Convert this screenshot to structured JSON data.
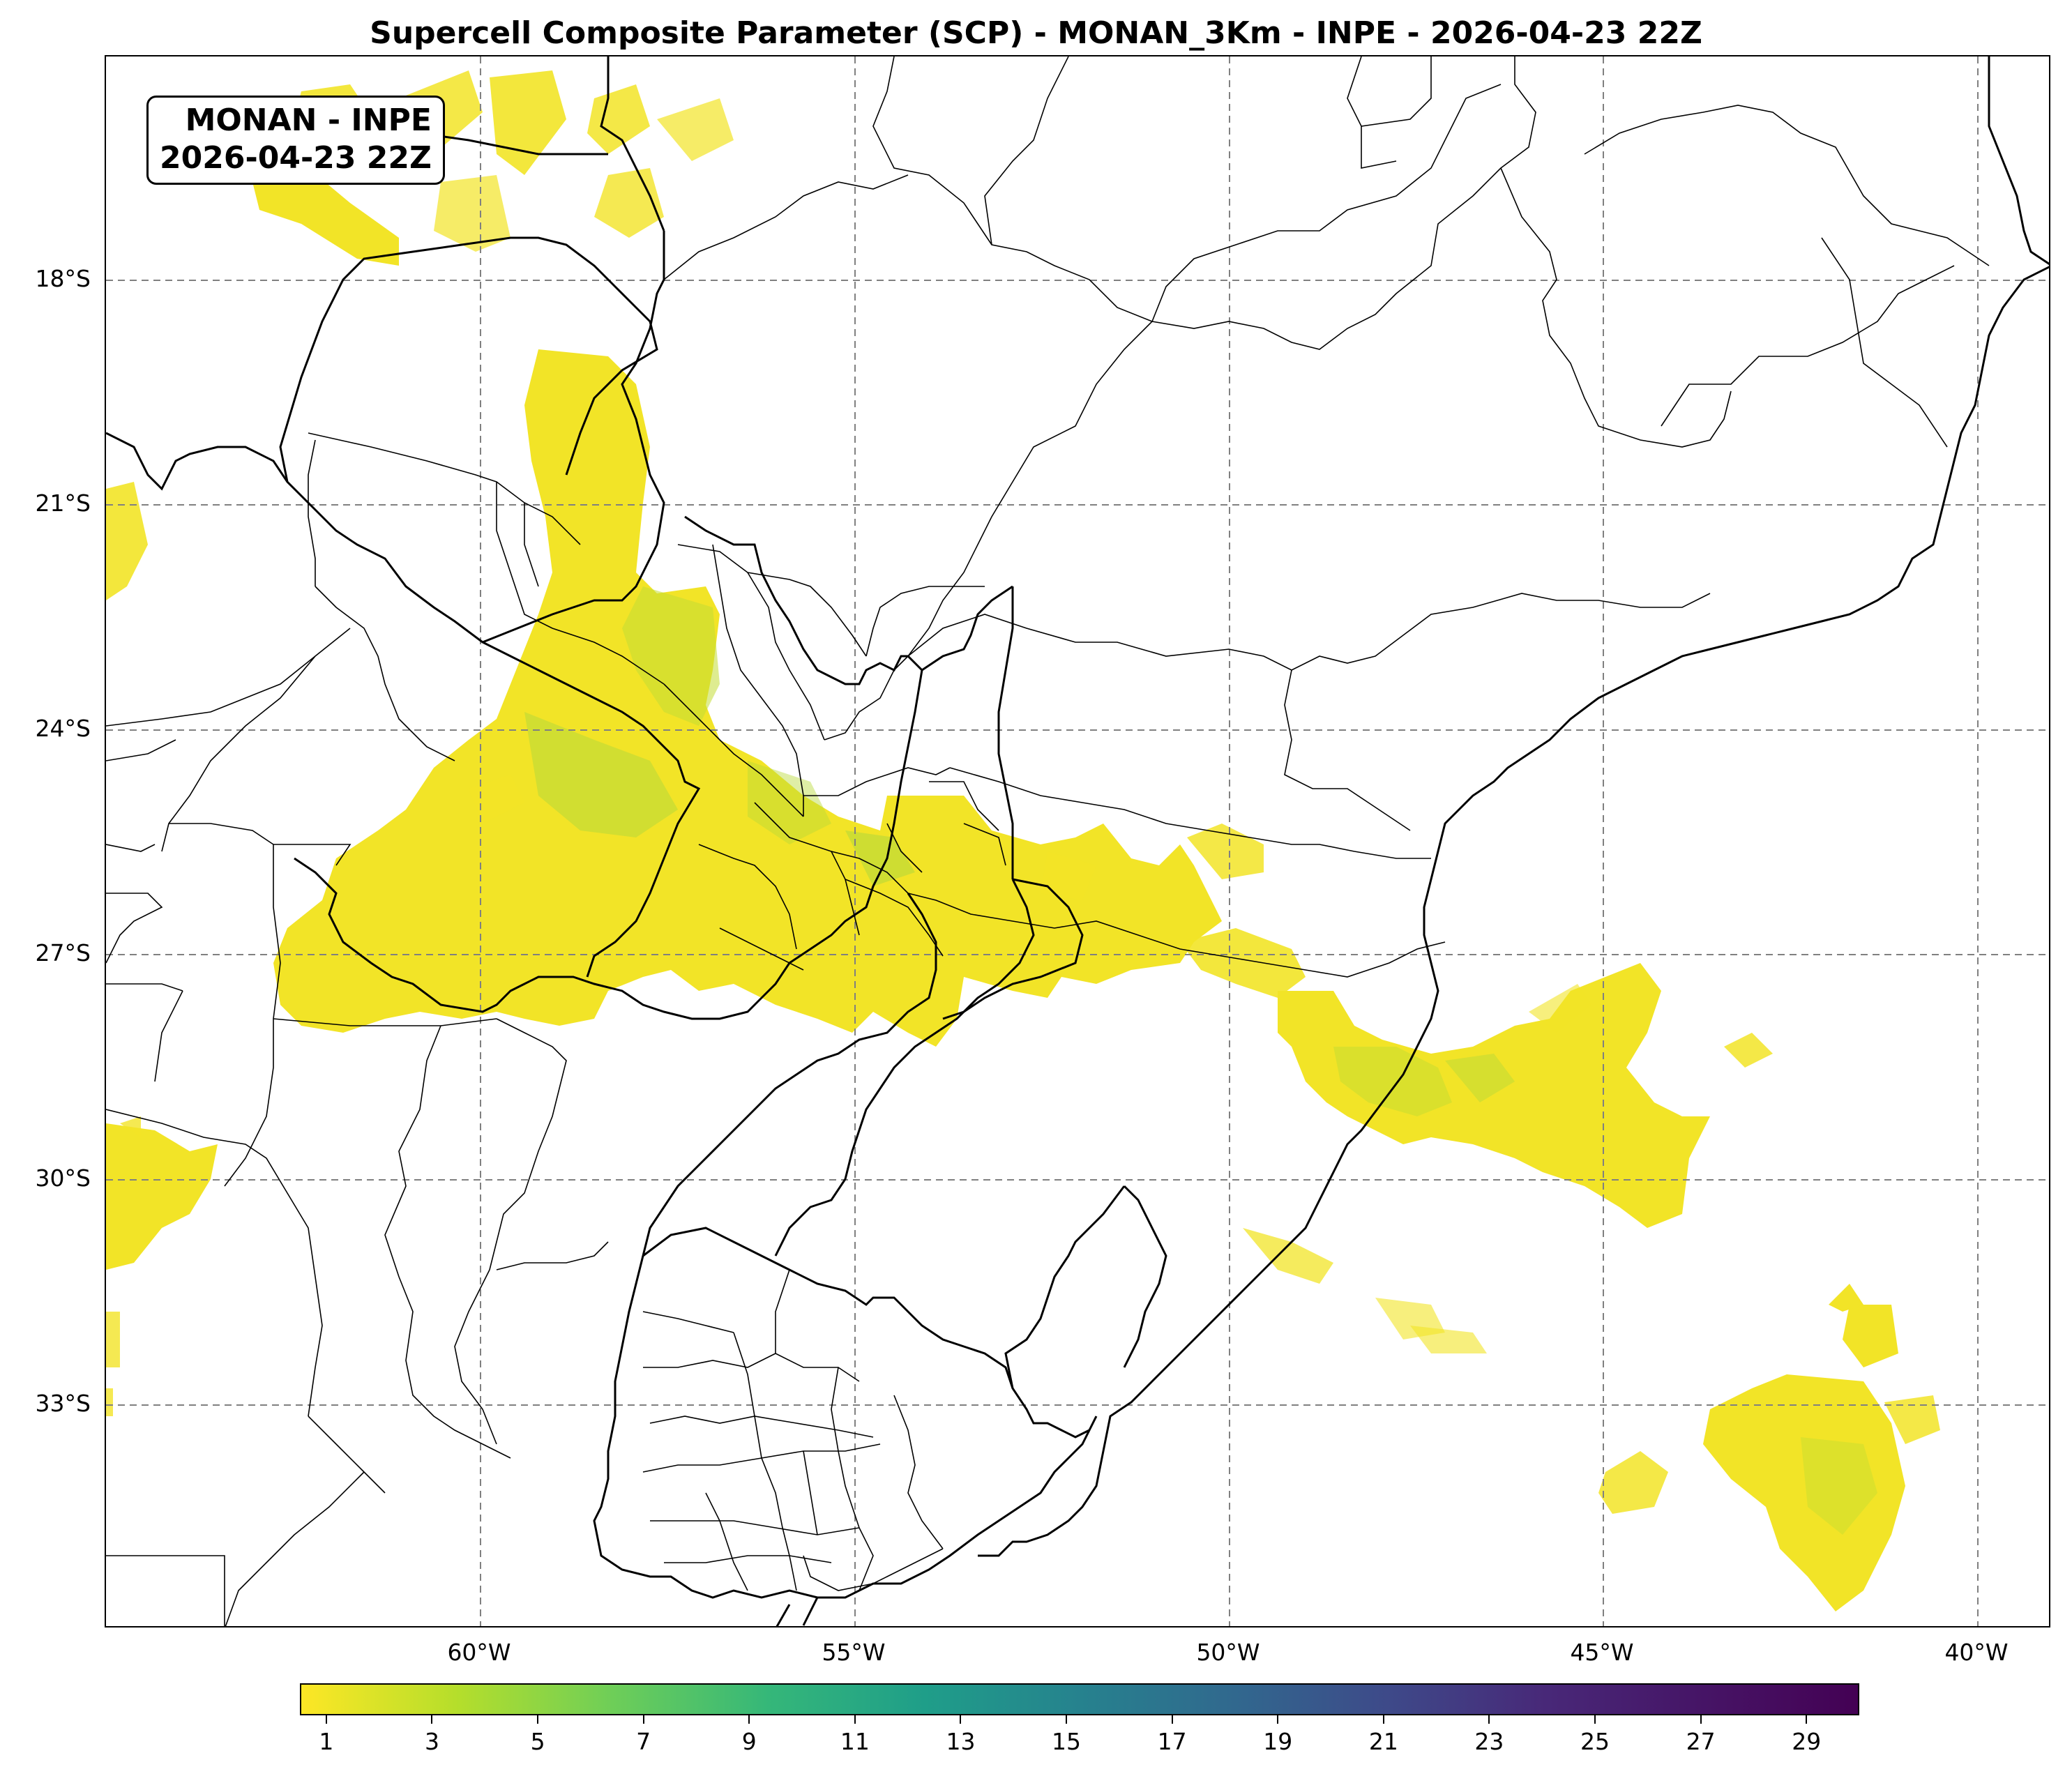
{
  "title": "Supercell Composite Parameter (SCP) - MONAN_3Km - INPE - 2026-04-23 22Z",
  "info_box": {
    "line1": "MONAN - INPE",
    "line2": "2026-04-23 22Z"
  },
  "lat_labels": [
    "18°S",
    "21°S",
    "24°S",
    "27°S",
    "30°S",
    "33°S"
  ],
  "lon_labels": [
    "60°W",
    "55°W",
    "50°W",
    "45°W",
    "40°W"
  ],
  "colorbar": {
    "ticks": [
      "1",
      "3",
      "5",
      "7",
      "9",
      "11",
      "13",
      "15",
      "17",
      "19",
      "21",
      "23",
      "25",
      "27",
      "29"
    ],
    "colormap": "viridis reversed",
    "colors": [
      "#fde725",
      "#b5de2b",
      "#6ece58",
      "#35b779",
      "#1f9e89",
      "#26828e",
      "#31688e",
      "#3e4989",
      "#482878",
      "#440154"
    ]
  },
  "map": {
    "grid": "dashed",
    "grid_color": "#808080",
    "land_borders_color": "#000000"
  }
}
